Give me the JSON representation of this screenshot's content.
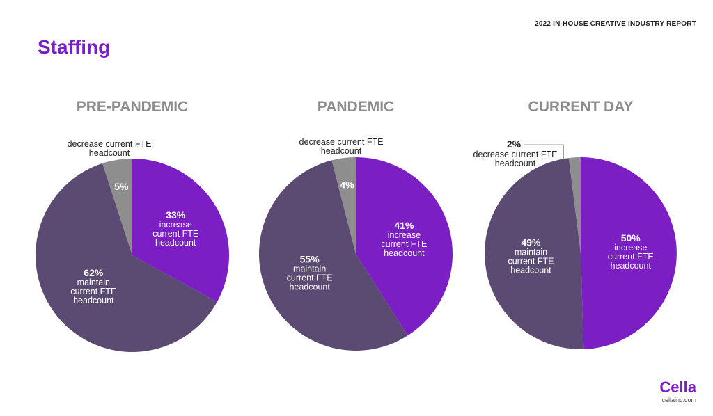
{
  "header": {
    "report_title": "2022 IN-HOUSE CREATIVE INDUSTRY REPORT",
    "page_title": "Staffing"
  },
  "colors": {
    "increase": "#7b1fc4",
    "maintain": "#5b4b72",
    "decrease": "#8e8e8e"
  },
  "chart_data": [
    {
      "type": "pie",
      "title": "PRE-PANDEMIC",
      "slices": [
        {
          "pct_label": "33%",
          "value": 33,
          "label_lines": [
            "increase",
            "current FTE",
            "headcount"
          ],
          "color": "#7b1fc4"
        },
        {
          "pct_label": "62%",
          "value": 62,
          "label_lines": [
            "maintain",
            "current FTE",
            "headcount"
          ],
          "color": "#5b4b72"
        },
        {
          "pct_label": "5%",
          "value": 5,
          "label_lines": [
            "decrease current FTE",
            "headcount"
          ],
          "color": "#8e8e8e"
        }
      ]
    },
    {
      "type": "pie",
      "title": "PANDEMIC",
      "slices": [
        {
          "pct_label": "41%",
          "value": 41,
          "label_lines": [
            "increase",
            "current FTE",
            "headcount"
          ],
          "color": "#7b1fc4"
        },
        {
          "pct_label": "55%",
          "value": 55,
          "label_lines": [
            "maintain",
            "current FTE",
            "headcount"
          ],
          "color": "#5b4b72"
        },
        {
          "pct_label": "4%",
          "value": 4,
          "label_lines": [
            "decrease current FTE",
            "headcount"
          ],
          "color": "#8e8e8e"
        }
      ]
    },
    {
      "type": "pie",
      "title": "CURRENT DAY",
      "slices": [
        {
          "pct_label": "50%",
          "value": 50,
          "label_lines": [
            "increase",
            "current FTE",
            "headcount"
          ],
          "color": "#7b1fc4"
        },
        {
          "pct_label": "49%",
          "value": 49,
          "label_lines": [
            "maintain",
            "current FTE",
            "headcount"
          ],
          "color": "#5b4b72"
        },
        {
          "pct_label": "2%",
          "value": 2,
          "label_lines": [
            "decrease current FTE",
            "headcount"
          ],
          "color": "#8e8e8e"
        }
      ]
    }
  ],
  "footer": {
    "logo_name": "Cella",
    "logo_url": "cellainc.com"
  }
}
